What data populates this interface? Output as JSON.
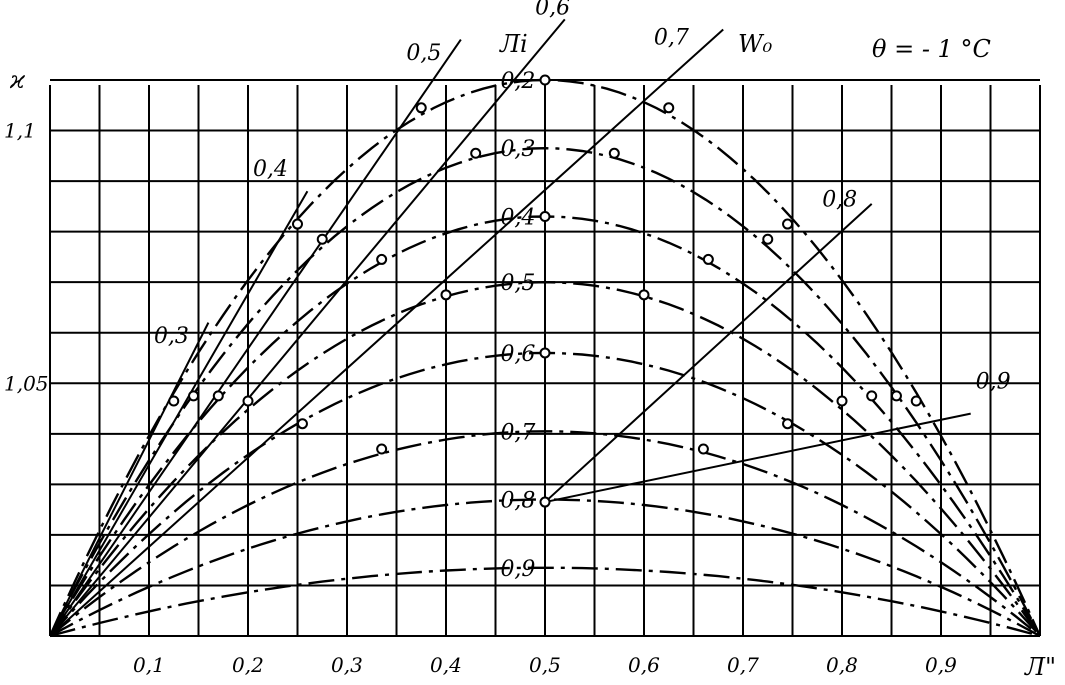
{
  "chart_data": {
    "type": "line",
    "title": "θ = - 1 °C",
    "xlabel": "Л\"",
    "ylabel": "ϰ",
    "xlim": [
      0,
      1
    ],
    "ylim": [
      1.0,
      1.11
    ],
    "grid": true,
    "x_ticks": [
      "0,1",
      "0,2",
      "0,3",
      "0,4",
      "0,5",
      "0,6",
      "0,7",
      "0,8",
      "0,9"
    ],
    "y_ticks": [
      {
        "value": 1.05,
        "label": "1,05"
      },
      {
        "value": 1.1,
        "label": "1,1"
      }
    ],
    "family_label": "Лi",
    "w0_label": "W₀",
    "dashed_series": [
      {
        "name": "0,2",
        "peak": 1.11,
        "label_x": 0.455
      },
      {
        "name": "0,3",
        "peak": 1.0965,
        "label_x": 0.455
      },
      {
        "name": "0,4",
        "peak": 1.083,
        "label_x": 0.455
      },
      {
        "name": "0,5",
        "peak": 1.07,
        "label_x": 0.455
      },
      {
        "name": "0,6",
        "peak": 1.056,
        "label_x": 0.455
      },
      {
        "name": "0,7",
        "peak": 1.0405,
        "label_x": 0.455
      },
      {
        "name": "0,8",
        "peak": 1.027,
        "label_x": 0.455
      },
      {
        "name": "0,9",
        "peak": 1.0135,
        "label_x": 0.455
      }
    ],
    "left_ridge_lines": [
      {
        "name": "0,3",
        "x": [
          0,
          0.16
        ],
        "y": [
          1.0,
          1.062
        ],
        "label_x": 0.105,
        "label_y": 1.058
      },
      {
        "name": "0,4",
        "x": [
          0,
          0.26
        ],
        "y": [
          1.0,
          1.088
        ],
        "label_x": 0.205,
        "label_y": 1.091
      },
      {
        "name": "0,5",
        "x": [
          0,
          0.415
        ],
        "y": [
          1.0,
          1.118
        ],
        "label_x": 0.36,
        "label_y": 1.114
      }
    ],
    "straight_lines": [
      {
        "name": "0,6",
        "x": [
          0,
          0.52
        ],
        "y": [
          1.0,
          1.122
        ],
        "label_x": 0.49,
        "label_y": 1.123
      },
      {
        "name": "0,7",
        "x": [
          0,
          0.68
        ],
        "y": [
          1.0,
          1.12
        ],
        "label_x": 0.61,
        "label_y": 1.117
      },
      {
        "name": "0,8",
        "x": [
          0.5,
          0.83
        ],
        "y": [
          1.0265,
          1.0855
        ],
        "label_x": 0.78,
        "label_y": 1.085
      },
      {
        "name": "0,9",
        "x": [
          0.5,
          0.93
        ],
        "y": [
          1.0265,
          1.044
        ],
        "label_x": 0.935,
        "label_y": 1.049
      }
    ],
    "markers": [
      {
        "x": 0.5,
        "y": 1.11
      },
      {
        "x": 0.625,
        "y": 1.1045
      },
      {
        "x": 0.375,
        "y": 1.1045
      },
      {
        "x": 0.57,
        "y": 1.0955
      },
      {
        "x": 0.43,
        "y": 1.0955
      },
      {
        "x": 0.5,
        "y": 1.083
      },
      {
        "x": 0.745,
        "y": 1.0815
      },
      {
        "x": 0.725,
        "y": 1.0785
      },
      {
        "x": 0.275,
        "y": 1.0785
      },
      {
        "x": 0.665,
        "y": 1.0745
      },
      {
        "x": 0.335,
        "y": 1.0745
      },
      {
        "x": 0.6,
        "y": 1.0675
      },
      {
        "x": 0.4,
        "y": 1.0675
      },
      {
        "x": 0.5,
        "y": 1.056
      },
      {
        "x": 0.25,
        "y": 1.0815
      },
      {
        "x": 0.8,
        "y": 1.0465
      },
      {
        "x": 0.83,
        "y": 1.0475
      },
      {
        "x": 0.855,
        "y": 1.0475
      },
      {
        "x": 0.875,
        "y": 1.0465
      },
      {
        "x": 0.2,
        "y": 1.0465
      },
      {
        "x": 0.17,
        "y": 1.0475
      },
      {
        "x": 0.145,
        "y": 1.0475
      },
      {
        "x": 0.125,
        "y": 1.0465
      },
      {
        "x": 0.745,
        "y": 1.042
      },
      {
        "x": 0.255,
        "y": 1.042
      },
      {
        "x": 0.66,
        "y": 1.037
      },
      {
        "x": 0.335,
        "y": 1.037
      },
      {
        "x": 0.5,
        "y": 1.0265
      }
    ]
  }
}
